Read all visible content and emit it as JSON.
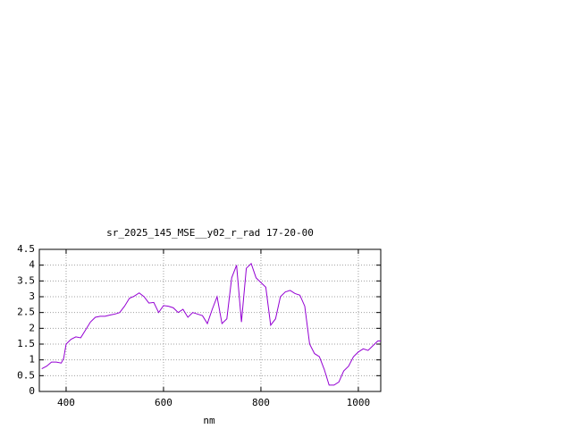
{
  "chart_data": {
    "type": "line",
    "title": "sr_2025_145_MSE__y02_r_rad 17-20-00",
    "x_label": "nm",
    "x": [
      350,
      360,
      370,
      380,
      390,
      395,
      400,
      410,
      420,
      430,
      440,
      450,
      460,
      470,
      480,
      490,
      500,
      510,
      520,
      530,
      540,
      550,
      560,
      570,
      580,
      590,
      600,
      610,
      620,
      630,
      640,
      650,
      660,
      670,
      680,
      690,
      700,
      710,
      720,
      730,
      740,
      750,
      760,
      770,
      780,
      790,
      800,
      810,
      820,
      830,
      840,
      850,
      860,
      870,
      880,
      890,
      900,
      910,
      920,
      930,
      940,
      950,
      960,
      970,
      980,
      990,
      1000,
      1010,
      1020,
      1030,
      1040,
      1046
    ],
    "values": [
      0.72,
      0.8,
      0.93,
      0.93,
      0.9,
      1.05,
      1.5,
      1.65,
      1.73,
      1.7,
      1.95,
      2.2,
      2.35,
      2.38,
      2.38,
      2.42,
      2.45,
      2.5,
      2.7,
      2.95,
      3.02,
      3.12,
      3.0,
      2.8,
      2.82,
      2.5,
      2.72,
      2.7,
      2.65,
      2.5,
      2.6,
      2.35,
      2.5,
      2.45,
      2.4,
      2.15,
      2.6,
      3.0,
      2.15,
      2.3,
      3.6,
      4.0,
      2.2,
      3.9,
      4.05,
      3.6,
      3.45,
      3.3,
      2.1,
      2.3,
      3.0,
      3.15,
      3.2,
      3.1,
      3.05,
      2.7,
      1.5,
      1.2,
      1.1,
      0.7,
      0.2,
      0.2,
      0.3,
      0.65,
      0.8,
      1.1,
      1.25,
      1.35,
      1.3,
      1.45,
      1.6,
      1.6
    ],
    "color": "#9400d3",
    "xlim": [
      345,
      1046
    ],
    "ylim": [
      0,
      4.5
    ],
    "xticks": [
      400,
      600,
      800,
      1000
    ],
    "yticks": [
      0,
      0.5,
      1,
      1.5,
      2,
      2.5,
      3,
      3.5,
      4,
      4.5
    ],
    "grid": true
  }
}
